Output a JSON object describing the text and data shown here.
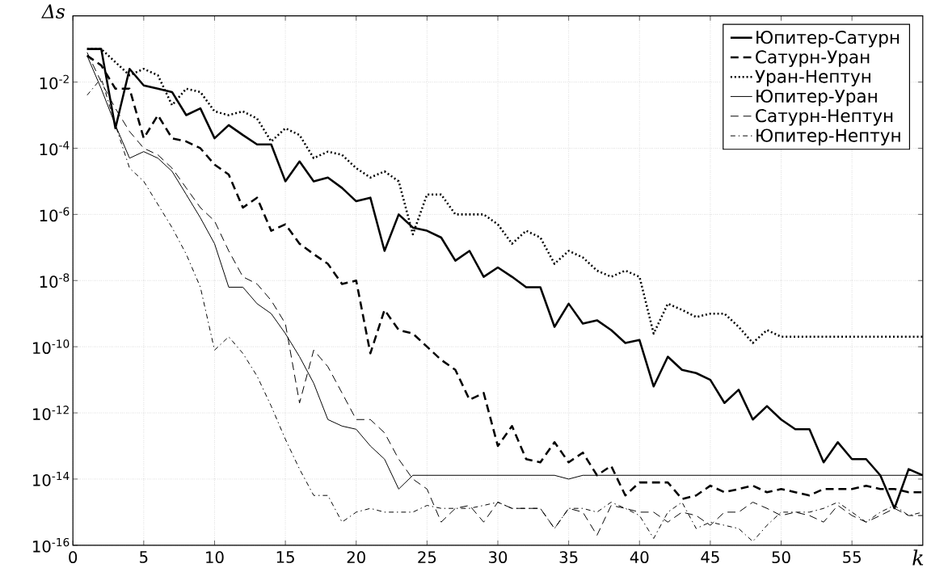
{
  "chart_data": {
    "type": "line",
    "xlabel": "k",
    "ylabel": "Δs",
    "x": [
      1,
      2,
      3,
      4,
      5,
      6,
      7,
      8,
      9,
      10,
      11,
      12,
      13,
      14,
      15,
      16,
      17,
      18,
      19,
      20,
      21,
      22,
      23,
      24,
      25,
      26,
      27,
      28,
      29,
      30,
      31,
      32,
      33,
      34,
      35,
      36,
      37,
      38,
      39,
      40,
      41,
      42,
      43,
      44,
      45,
      46,
      47,
      48,
      49,
      50,
      51,
      52,
      53,
      54,
      55,
      56,
      57,
      58,
      59,
      60
    ],
    "series": [
      {
        "name": "Юпитер-Сатурн",
        "color": "#000000",
        "line_style": "solid",
        "values": [
          0.1,
          0.1,
          0.0004,
          0.025,
          0.0079,
          0.0063,
          0.005,
          0.001,
          0.0016,
          0.0002,
          0.0005,
          0.00025,
          0.00013,
          0.00013,
          1e-05,
          4e-05,
          1e-05,
          1.3e-05,
          6.3e-06,
          2.5e-06,
          3.2e-06,
          7.9e-08,
          1e-06,
          4e-07,
          3.2e-07,
          2e-07,
          4e-08,
          7.9e-08,
          1.3e-08,
          2.5e-08,
          1.3e-08,
          6.3e-09,
          6.3e-09,
          4e-10,
          2e-09,
          5e-10,
          6.3e-10,
          3.2e-10,
          1.3e-10,
          1.6e-10,
          6.3e-12,
          5e-11,
          2e-11,
          1.6e-11,
          1e-11,
          2e-12,
          5e-12,
          6.3e-13,
          1.6e-12,
          6.3e-13,
          3.2e-13,
          3.2e-13,
          3.2e-14,
          1.3e-13,
          4e-14,
          4e-14,
          1.3e-14,
          1.3e-15,
          2e-14,
          1.3e-14
        ]
      },
      {
        "name": "Сатурн-Уран",
        "color": "#000000",
        "line_style": "dashed",
        "values": [
          0.063,
          0.032,
          0.0063,
          0.0063,
          0.0002,
          0.001,
          0.0002,
          0.00016,
          0.0001,
          3.2e-05,
          1.6e-05,
          1.6e-06,
          3.2e-06,
          3.2e-07,
          5e-07,
          1.3e-07,
          6.3e-08,
          3.2e-08,
          7.9e-09,
          1e-08,
          6.3e-11,
          1.3e-09,
          3.2e-10,
          2.5e-10,
          1e-10,
          4e-11,
          2e-11,
          2.5e-12,
          4e-12,
          1e-13,
          4e-13,
          4e-14,
          3.2e-14,
          1.3e-13,
          3.2e-14,
          6.3e-14,
          1.3e-14,
          2.5e-14,
          3.2e-15,
          7.9e-15,
          7.9e-15,
          7.9e-15,
          2.5e-15,
          3.2e-15,
          6.3e-15,
          4e-15,
          5e-15,
          6.3e-15,
          4e-15,
          5e-15,
          4e-15,
          3.2e-15,
          5e-15,
          5e-15,
          5e-15,
          6.3e-15,
          5e-15,
          5e-15,
          4e-15,
          4e-15
        ]
      },
      {
        "name": "Уран-Нептун",
        "color": "#000000",
        "line_style": "dotted",
        "values": [
          0.1,
          0.1,
          0.04,
          0.016,
          0.025,
          0.016,
          0.002,
          0.0063,
          0.005,
          0.0013,
          0.001,
          0.0013,
          0.00079,
          0.00016,
          0.0004,
          0.00025,
          5e-05,
          7.9e-05,
          6.3e-05,
          2.5e-05,
          1.3e-05,
          2e-05,
          1e-05,
          2.5e-07,
          4e-06,
          4e-06,
          1e-06,
          1e-06,
          1e-06,
          5e-07,
          1.3e-07,
          3.2e-07,
          2e-07,
          3.2e-08,
          7.9e-08,
          5e-08,
          2e-08,
          1.3e-08,
          2e-08,
          1.3e-08,
          2.5e-10,
          2e-09,
          1.3e-09,
          7.9e-10,
          1e-09,
          1e-09,
          4e-10,
          1.3e-10,
          3.2e-10,
          2e-10,
          2e-10,
          2e-10,
          2e-10,
          2e-10,
          2e-10,
          2e-10,
          2e-10,
          2e-10,
          2e-10,
          2e-10
        ]
      },
      {
        "name": "Юпитер-Уран",
        "color": "#000000",
        "line_style": "solid",
        "values": [
          0.063,
          0.0063,
          0.0005,
          5e-05,
          7.9e-05,
          5e-05,
          2e-05,
          4e-06,
          7.9e-07,
          1.3e-07,
          6.3e-09,
          6.3e-09,
          2e-09,
          1e-09,
          2.5e-10,
          5e-11,
          7.9e-12,
          6.3e-13,
          4e-13,
          3.2e-13,
          1e-13,
          4e-14,
          5e-15,
          1.3e-14,
          1.3e-14,
          1.3e-14,
          1.3e-14,
          1.3e-14,
          1.3e-14,
          1.3e-14,
          1.3e-14,
          1.3e-14,
          1.3e-14,
          1.3e-14,
          1e-14,
          1.3e-14,
          1.3e-14,
          1.3e-14,
          1.3e-14,
          1.3e-14,
          1.3e-14,
          1.3e-14,
          1.3e-14,
          1.3e-14,
          1.3e-14,
          1.3e-14,
          1.3e-14,
          1.3e-14,
          1.3e-14,
          1.3e-14,
          1.3e-14,
          1.3e-14,
          1.3e-14,
          1.3e-14,
          1.3e-14,
          1.3e-14,
          1.3e-14,
          1.3e-14,
          1.3e-14,
          1.3e-14
        ]
      },
      {
        "name": "Сатурн-Нептун",
        "color": "#000000",
        "line_style": "dashed",
        "values": [
          0.079,
          0.01,
          0.0016,
          0.00032,
          0.0001,
          6.3e-05,
          2.5e-05,
          6.3e-06,
          1.6e-06,
          6.3e-07,
          7.9e-08,
          1.3e-08,
          7.9e-09,
          2.5e-09,
          5e-10,
          2e-12,
          7.9e-11,
          2.5e-11,
          4e-12,
          6.3e-13,
          6.3e-13,
          2.5e-13,
          4e-14,
          1e-14,
          5e-15,
          5e-16,
          1.3e-15,
          1.6e-15,
          5e-16,
          2e-15,
          1.3e-15,
          1.3e-15,
          1.3e-15,
          3.2e-16,
          1.3e-15,
          1e-15,
          2e-16,
          1.6e-15,
          1.3e-15,
          1e-15,
          1e-15,
          5e-16,
          1e-15,
          7.9e-16,
          4e-16,
          1e-15,
          1e-15,
          2e-15,
          1.3e-15,
          7.9e-16,
          1e-15,
          7.9e-16,
          5e-16,
          1.6e-15,
          7.9e-16,
          5e-16,
          7.9e-16,
          1.3e-15,
          7.9e-16,
          7.9e-16
        ]
      },
      {
        "name": "Юпитер-Нептун",
        "color": "#000000",
        "line_style": "dashdotted",
        "values": [
          0.004,
          0.013,
          0.0005,
          2.5e-05,
          1e-05,
          2e-06,
          4e-07,
          6.3e-08,
          6.3e-09,
          7.9e-11,
          2e-10,
          6.3e-11,
          1.3e-11,
          1.6e-12,
          1.6e-13,
          2e-14,
          3.2e-15,
          3.2e-15,
          5e-16,
          1e-15,
          1.3e-15,
          1e-15,
          1e-15,
          1e-15,
          1.6e-15,
          1.3e-15,
          1.3e-15,
          1.3e-15,
          1.6e-15,
          2e-15,
          1.3e-15,
          1.3e-15,
          1.3e-15,
          3.2e-16,
          1.3e-15,
          1.3e-15,
          1e-15,
          2e-15,
          1.3e-15,
          7.9e-16,
          1.6e-16,
          1e-15,
          2e-15,
          3.2e-16,
          5e-16,
          4e-16,
          3.2e-16,
          1.3e-16,
          4e-16,
          1e-15,
          1e-15,
          1e-15,
          1.3e-15,
          2e-15,
          1e-15,
          5e-16,
          1e-15,
          1.6e-15,
          7.9e-16,
          1e-15
        ]
      }
    ],
    "xlim": [
      0,
      60
    ],
    "xticks": [
      0,
      5,
      10,
      15,
      20,
      25,
      30,
      35,
      40,
      45,
      50,
      55
    ],
    "ylim": [
      1e-16,
      1
    ],
    "yticks": [
      {
        "value": 1e-16,
        "label": "10$^{-16}$"
      },
      {
        "value": 1e-14,
        "label": "10$^{-14}$"
      },
      {
        "value": 1e-12,
        "label": "10$^{-12}$"
      },
      {
        "value": 1e-10,
        "label": "10$^{-10}$"
      },
      {
        "value": 1e-08,
        "label": "10$^{-8}$"
      },
      {
        "value": 1e-06,
        "label": "10$^{-6}$"
      },
      {
        "value": 0.0001,
        "label": "10$^{-4}$"
      },
      {
        "value": 0.01,
        "label": "10$^{-2}$"
      }
    ],
    "log": "y",
    "grid": true,
    "legend": "top right",
    "marker": "none"
  }
}
